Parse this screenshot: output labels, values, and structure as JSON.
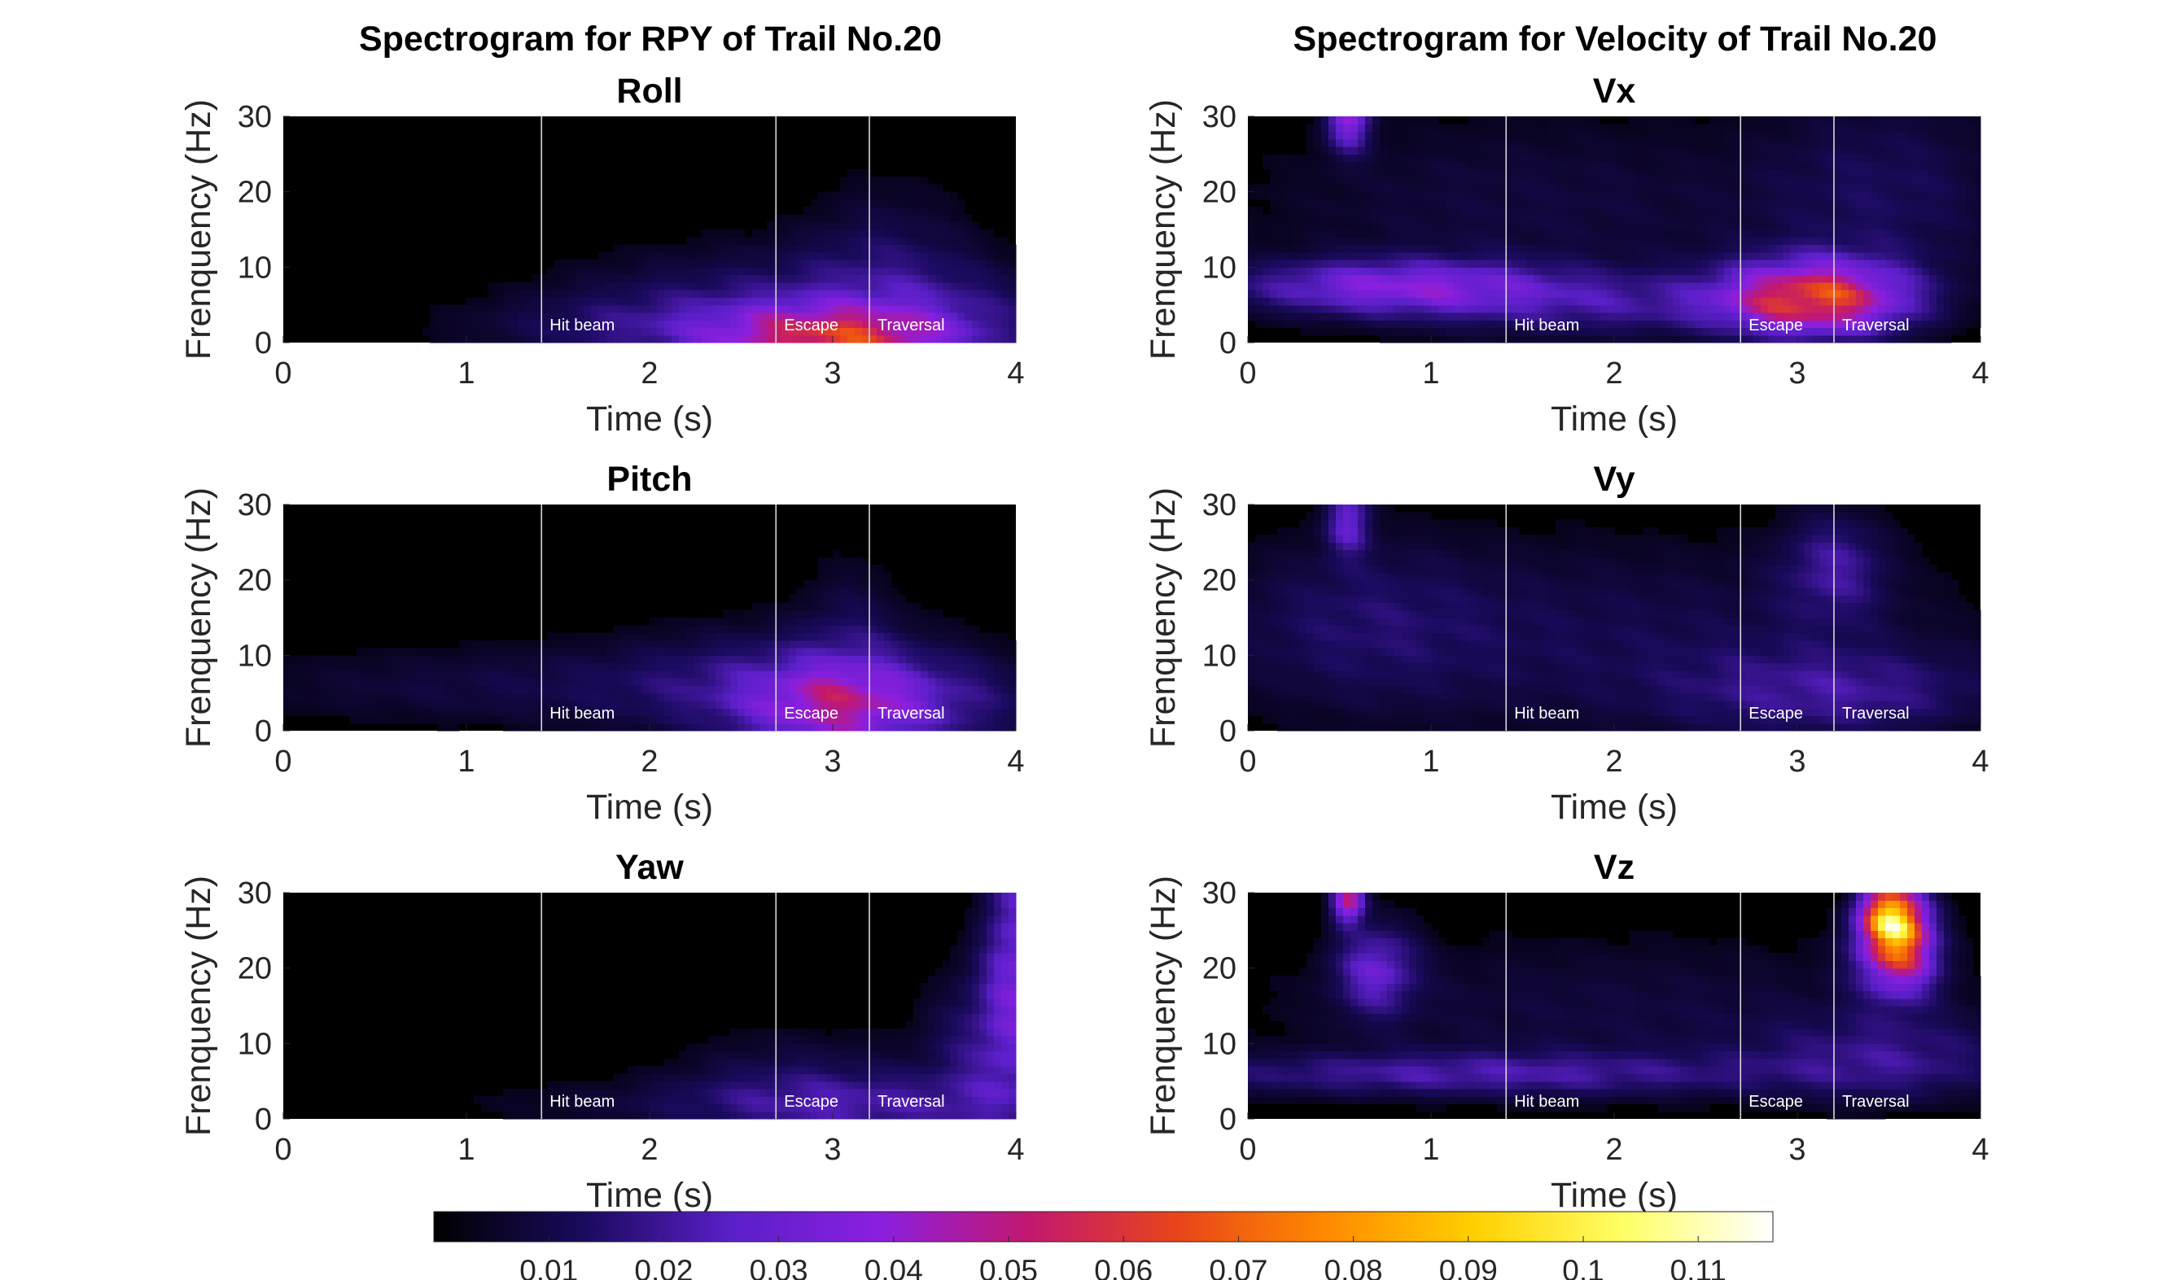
{
  "figure_titles": {
    "left": "Spectrogram for RPY of Trail No.20",
    "right": "Spectrogram for Velocity of Trail No.20"
  },
  "chart_data": [
    {
      "type": "heatmap",
      "id": "roll",
      "title": "Roll",
      "column": "left",
      "row": 0,
      "xlabel": "Time (s)",
      "ylabel": "Frenquency (Hz)",
      "xlim": [
        0,
        4
      ],
      "ylim": [
        0,
        30
      ],
      "xticks": [
        0,
        1,
        2,
        3,
        4
      ],
      "yticks": [
        0,
        10,
        20,
        30
      ],
      "blobs": [
        {
          "t": 3.0,
          "f": 0.5,
          "st": 0.45,
          "sf": 3.0,
          "a": 0.04
        },
        {
          "t": 2.6,
          "f": 4.0,
          "st": 0.8,
          "sf": 6.0,
          "a": 0.015
        },
        {
          "t": 3.3,
          "f": 8.0,
          "st": 0.35,
          "sf": 10.0,
          "a": 0.01
        },
        {
          "t": 2.0,
          "f": 2.0,
          "st": 0.8,
          "sf": 3.0,
          "a": 0.008
        },
        {
          "t": 3.8,
          "f": 3.0,
          "st": 0.4,
          "sf": 5.0,
          "a": 0.008
        }
      ]
    },
    {
      "type": "heatmap",
      "id": "pitch",
      "title": "Pitch",
      "column": "left",
      "row": 1,
      "xlabel": "Time (s)",
      "ylabel": "Frenquency (Hz)",
      "xlim": [
        0,
        4
      ],
      "ylim": [
        0,
        30
      ],
      "xticks": [
        0,
        1,
        2,
        3,
        4
      ],
      "yticks": [
        0,
        10,
        20,
        30
      ],
      "blobs": [
        {
          "t": 3.0,
          "f": 3.0,
          "st": 0.35,
          "sf": 4.0,
          "a": 0.028
        },
        {
          "t": 2.8,
          "f": 6.0,
          "st": 0.7,
          "sf": 6.0,
          "a": 0.014
        },
        {
          "t": 3.1,
          "f": 14.0,
          "st": 0.2,
          "sf": 8.0,
          "a": 0.007
        },
        {
          "t": 1.2,
          "f": 6.0,
          "st": 1.3,
          "sf": 4.0,
          "a": 0.008
        },
        {
          "t": 3.6,
          "f": 3.0,
          "st": 0.4,
          "sf": 5.0,
          "a": 0.01
        }
      ]
    },
    {
      "type": "heatmap",
      "id": "yaw",
      "title": "Yaw",
      "column": "left",
      "row": 2,
      "xlabel": "Time (s)",
      "ylabel": "Frenquency (Hz)",
      "xlim": [
        0,
        4
      ],
      "ylim": [
        0,
        30
      ],
      "xticks": [
        0,
        1,
        2,
        3,
        4
      ],
      "yticks": [
        0,
        10,
        20,
        30
      ],
      "blobs": [
        {
          "t": 4.0,
          "f": 25.0,
          "st": 0.12,
          "sf": 12.0,
          "a": 0.025
        },
        {
          "t": 3.9,
          "f": 10.0,
          "st": 0.25,
          "sf": 8.0,
          "a": 0.018
        },
        {
          "t": 3.3,
          "f": 1.5,
          "st": 0.6,
          "sf": 3.0,
          "a": 0.014
        },
        {
          "t": 2.8,
          "f": 5.0,
          "st": 0.5,
          "sf": 5.0,
          "a": 0.01
        },
        {
          "t": 2.0,
          "f": 2.0,
          "st": 0.9,
          "sf": 2.5,
          "a": 0.006
        }
      ]
    },
    {
      "type": "heatmap",
      "id": "vx",
      "title": "Vx",
      "column": "right",
      "row": 0,
      "xlabel": "Time (s)",
      "ylabel": "Frenquency (Hz)",
      "xlim": [
        0,
        4
      ],
      "ylim": [
        0,
        30
      ],
      "xticks": [
        0,
        1,
        2,
        3,
        4
      ],
      "yticks": [
        0,
        10,
        20,
        30
      ],
      "blobs": [
        {
          "t": 3.1,
          "f": 6.0,
          "st": 0.35,
          "sf": 3.5,
          "a": 0.055
        },
        {
          "t": 0.8,
          "f": 7.5,
          "st": 0.6,
          "sf": 2.5,
          "a": 0.03
        },
        {
          "t": 2.0,
          "f": 5.0,
          "st": 0.8,
          "sf": 3.0,
          "a": 0.015
        },
        {
          "t": 0.55,
          "f": 30.0,
          "st": 0.08,
          "sf": 3.0,
          "a": 0.035
        },
        {
          "t": 1.5,
          "f": 18.0,
          "st": 1.2,
          "sf": 10.0,
          "a": 0.008
        },
        {
          "t": 3.5,
          "f": 20.0,
          "st": 0.5,
          "sf": 10.0,
          "a": 0.01
        }
      ]
    },
    {
      "type": "heatmap",
      "id": "vy",
      "title": "Vy",
      "column": "right",
      "row": 1,
      "xlabel": "Time (s)",
      "ylabel": "Frenquency (Hz)",
      "xlim": [
        0,
        4
      ],
      "ylim": [
        0,
        30
      ],
      "xticks": [
        0,
        1,
        2,
        3,
        4
      ],
      "yticks": [
        0,
        10,
        20,
        30
      ],
      "blobs": [
        {
          "t": 0.55,
          "f": 28.0,
          "st": 0.08,
          "sf": 3.0,
          "a": 0.025
        },
        {
          "t": 3.2,
          "f": 22.0,
          "st": 0.2,
          "sf": 5.0,
          "a": 0.016
        },
        {
          "t": 3.2,
          "f": 5.0,
          "st": 0.6,
          "sf": 4.0,
          "a": 0.015
        },
        {
          "t": 2.0,
          "f": 12.0,
          "st": 1.5,
          "sf": 10.0,
          "a": 0.01
        },
        {
          "t": 0.6,
          "f": 15.0,
          "st": 0.5,
          "sf": 8.0,
          "a": 0.008
        }
      ]
    },
    {
      "type": "heatmap",
      "id": "vz",
      "title": "Vz",
      "column": "right",
      "row": 2,
      "xlabel": "Time (s)",
      "ylabel": "Frenquency (Hz)",
      "xlim": [
        0,
        4
      ],
      "ylim": [
        0,
        30
      ],
      "xticks": [
        0,
        1,
        2,
        3,
        4
      ],
      "yticks": [
        0,
        10,
        20,
        30
      ],
      "blobs": [
        {
          "t": 3.52,
          "f": 27.0,
          "st": 0.12,
          "sf": 3.0,
          "a": 0.075
        },
        {
          "t": 3.55,
          "f": 22.0,
          "st": 0.15,
          "sf": 4.0,
          "a": 0.05
        },
        {
          "t": 0.55,
          "f": 29.0,
          "st": 0.06,
          "sf": 2.0,
          "a": 0.05
        },
        {
          "t": 0.7,
          "f": 20.0,
          "st": 0.15,
          "sf": 4.0,
          "a": 0.025
        },
        {
          "t": 1.2,
          "f": 6.0,
          "st": 1.2,
          "sf": 2.0,
          "a": 0.018
        },
        {
          "t": 3.5,
          "f": 8.0,
          "st": 0.5,
          "sf": 4.0,
          "a": 0.014
        },
        {
          "t": 2.0,
          "f": 14.0,
          "st": 1.5,
          "sf": 8.0,
          "a": 0.008
        }
      ]
    }
  ],
  "markers": [
    {
      "t": 1.41,
      "label": "Hit beam"
    },
    {
      "t": 2.69,
      "label": "Escape"
    },
    {
      "t": 3.2,
      "label": "Traversal"
    }
  ],
  "colorbar": {
    "colormap": "hot-purple",
    "stops": [
      "#000000",
      "#1a0a5c",
      "#5a1fc8",
      "#8b1fe0",
      "#c2186f",
      "#e8451a",
      "#ff8a00",
      "#ffd000",
      "#ffff66",
      "#ffffff"
    ],
    "range": [
      0,
      0.1165
    ],
    "ticks": [
      0.01,
      0.02,
      0.03,
      0.04,
      0.05,
      0.06,
      0.07,
      0.08,
      0.09,
      0.1,
      0.11
    ],
    "tick_labels": [
      "0.01",
      "0.02",
      "0.03",
      "0.04",
      "0.05",
      "0.06",
      "0.07",
      "0.08",
      "0.09",
      "0.1",
      "0.11"
    ]
  }
}
